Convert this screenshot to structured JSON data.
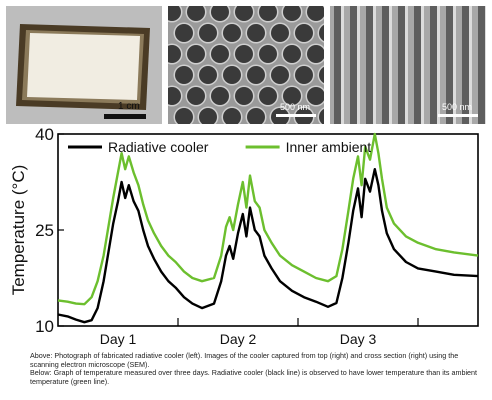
{
  "photos": {
    "sample_scale_label": "1 cm",
    "top_view_scale_label": "500 nm",
    "cross_section_scale_label": "500 nm"
  },
  "chart_data": {
    "type": "line",
    "ylabel": "Temperature (°C)",
    "xlabel": "",
    "y_ticks": [
      10,
      25,
      40
    ],
    "ylim": [
      10,
      40
    ],
    "xlim": [
      0,
      3.5
    ],
    "x_ticks": [
      {
        "label": "Day 1",
        "x": 0.5
      },
      {
        "label": "Day 2",
        "x": 1.5
      },
      {
        "label": "Day 3",
        "x": 2.5
      }
    ],
    "day_boundaries": [
      1,
      2,
      3
    ],
    "legend_position": "top",
    "series": [
      {
        "name": "Radiative cooler",
        "color": "#000000",
        "points": [
          [
            0.0,
            11.8
          ],
          [
            0.08,
            11.5
          ],
          [
            0.15,
            11.0
          ],
          [
            0.22,
            10.6
          ],
          [
            0.28,
            10.9
          ],
          [
            0.33,
            12.8
          ],
          [
            0.38,
            17.0
          ],
          [
            0.42,
            21.5
          ],
          [
            0.46,
            26.0
          ],
          [
            0.5,
            29.5
          ],
          [
            0.53,
            32.5
          ],
          [
            0.56,
            30.0
          ],
          [
            0.59,
            32.0
          ],
          [
            0.63,
            29.5
          ],
          [
            0.67,
            28.0
          ],
          [
            0.71,
            25.0
          ],
          [
            0.75,
            22.5
          ],
          [
            0.8,
            20.5
          ],
          [
            0.86,
            18.5
          ],
          [
            0.92,
            17.0
          ],
          [
            0.98,
            16.0
          ],
          [
            1.05,
            14.5
          ],
          [
            1.12,
            13.5
          ],
          [
            1.2,
            12.8
          ],
          [
            1.3,
            13.5
          ],
          [
            1.36,
            17.0
          ],
          [
            1.4,
            21.0
          ],
          [
            1.43,
            22.5
          ],
          [
            1.46,
            20.5
          ],
          [
            1.5,
            24.5
          ],
          [
            1.54,
            27.5
          ],
          [
            1.57,
            24.0
          ],
          [
            1.6,
            28.5
          ],
          [
            1.64,
            25.0
          ],
          [
            1.68,
            24.0
          ],
          [
            1.72,
            21.0
          ],
          [
            1.78,
            19.0
          ],
          [
            1.85,
            17.0
          ],
          [
            1.95,
            15.5
          ],
          [
            2.05,
            14.5
          ],
          [
            2.15,
            13.8
          ],
          [
            2.25,
            13.0
          ],
          [
            2.32,
            13.6
          ],
          [
            2.37,
            17.5
          ],
          [
            2.42,
            23.0
          ],
          [
            2.46,
            28.0
          ],
          [
            2.5,
            31.5
          ],
          [
            2.53,
            27.0
          ],
          [
            2.56,
            33.0
          ],
          [
            2.6,
            31.0
          ],
          [
            2.64,
            34.5
          ],
          [
            2.67,
            32.0
          ],
          [
            2.7,
            28.0
          ],
          [
            2.74,
            24.5
          ],
          [
            2.8,
            22.0
          ],
          [
            2.9,
            20.0
          ],
          [
            3.0,
            19.0
          ],
          [
            3.15,
            18.5
          ],
          [
            3.3,
            18.0
          ],
          [
            3.5,
            17.8
          ]
        ]
      },
      {
        "name": "Inner ambient",
        "color": "#6cbf2e",
        "points": [
          [
            0.0,
            14.0
          ],
          [
            0.08,
            13.8
          ],
          [
            0.15,
            13.5
          ],
          [
            0.22,
            13.4
          ],
          [
            0.28,
            14.5
          ],
          [
            0.33,
            17.0
          ],
          [
            0.38,
            21.0
          ],
          [
            0.42,
            25.5
          ],
          [
            0.46,
            30.0
          ],
          [
            0.5,
            34.0
          ],
          [
            0.53,
            37.0
          ],
          [
            0.56,
            34.5
          ],
          [
            0.59,
            36.5
          ],
          [
            0.63,
            34.0
          ],
          [
            0.67,
            32.0
          ],
          [
            0.71,
            29.0
          ],
          [
            0.75,
            26.5
          ],
          [
            0.8,
            24.5
          ],
          [
            0.86,
            22.5
          ],
          [
            0.92,
            21.0
          ],
          [
            0.98,
            20.0
          ],
          [
            1.05,
            18.5
          ],
          [
            1.12,
            17.5
          ],
          [
            1.2,
            17.0
          ],
          [
            1.3,
            17.5
          ],
          [
            1.36,
            21.0
          ],
          [
            1.4,
            25.5
          ],
          [
            1.43,
            27.0
          ],
          [
            1.46,
            25.0
          ],
          [
            1.5,
            29.0
          ],
          [
            1.54,
            32.5
          ],
          [
            1.57,
            28.5
          ],
          [
            1.6,
            33.5
          ],
          [
            1.64,
            29.5
          ],
          [
            1.68,
            28.5
          ],
          [
            1.72,
            25.0
          ],
          [
            1.78,
            23.0
          ],
          [
            1.85,
            21.0
          ],
          [
            1.95,
            19.5
          ],
          [
            2.05,
            18.5
          ],
          [
            2.15,
            17.5
          ],
          [
            2.25,
            17.0
          ],
          [
            2.32,
            17.8
          ],
          [
            2.37,
            22.0
          ],
          [
            2.42,
            28.0
          ],
          [
            2.46,
            33.0
          ],
          [
            2.5,
            36.5
          ],
          [
            2.53,
            32.0
          ],
          [
            2.56,
            38.0
          ],
          [
            2.6,
            36.0
          ],
          [
            2.64,
            40.0
          ],
          [
            2.67,
            37.0
          ],
          [
            2.7,
            33.0
          ],
          [
            2.74,
            28.5
          ],
          [
            2.8,
            26.0
          ],
          [
            2.9,
            24.0
          ],
          [
            3.0,
            23.0
          ],
          [
            3.15,
            22.0
          ],
          [
            3.3,
            21.5
          ],
          [
            3.5,
            21.0
          ]
        ]
      }
    ]
  },
  "caption": {
    "above": "Above: Photograph of fabricated radiative cooler (left). Images of the cooler captured from top (right) and cross section (right) using the scanning electron microscope (SEM).",
    "below": "Below: Graph of temperature measured over three days. Radiative cooler (black line) is observed to have lower temperature than its ambient temperature (green line)."
  }
}
